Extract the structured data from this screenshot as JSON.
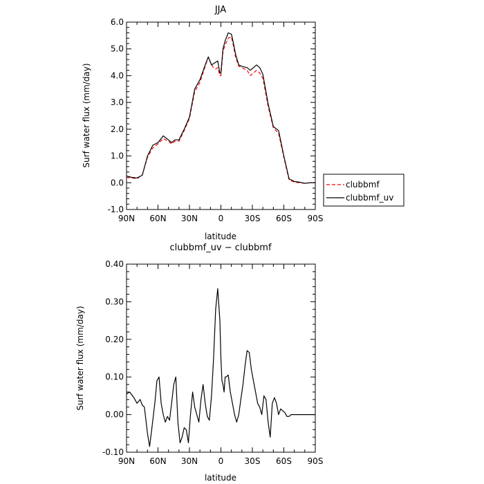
{
  "chart_data": [
    {
      "type": "line",
      "title": "JJA",
      "xlabel": "latitude",
      "ylabel": "Surf water flux (mm/day)",
      "xlim": [
        90,
        -90
      ],
      "ylim": [
        -1.0,
        6.0
      ],
      "xticks": [
        90,
        60,
        30,
        0,
        -30,
        -60,
        -90
      ],
      "xtick_labels": [
        "90N",
        "60N",
        "30N",
        "0",
        "30S",
        "60S",
        "90S"
      ],
      "yticks": [
        -1.0,
        0.0,
        1.0,
        2.0,
        3.0,
        4.0,
        5.0,
        6.0
      ],
      "ytick_labels": [
        "-1.0",
        "0.0",
        "1.0",
        "2.0",
        "3.0",
        "4.0",
        "5.0",
        "6.0"
      ],
      "grid": false,
      "legend": "right, outside plot",
      "series": [
        {
          "name": "clubbmf",
          "color": "#ff0000",
          "dash": "dashed",
          "x": [
            90,
            85,
            80,
            75,
            70,
            65,
            60,
            55,
            50,
            47,
            44,
            40,
            35,
            30,
            25,
            20,
            15,
            12,
            9,
            7,
            5,
            3,
            1,
            0,
            -2,
            -4,
            -7,
            -10,
            -12,
            -14,
            -17,
            -20,
            -25,
            -28,
            -31,
            -34,
            -37,
            -40,
            -45,
            -50,
            -55,
            -60,
            -65,
            -70,
            -75,
            -80,
            -85,
            -90
          ],
          "y": [
            0.2,
            0.18,
            0.15,
            0.3,
            0.95,
            1.3,
            1.45,
            1.65,
            1.55,
            1.45,
            1.55,
            1.55,
            1.95,
            2.4,
            3.4,
            3.75,
            4.35,
            4.7,
            4.4,
            4.3,
            4.25,
            4.3,
            4.0,
            4.0,
            4.9,
            5.15,
            5.4,
            5.45,
            5.1,
            4.7,
            4.35,
            4.3,
            4.2,
            4.0,
            4.1,
            4.2,
            4.1,
            3.9,
            2.85,
            2.05,
            1.85,
            0.95,
            0.1,
            0.02,
            0.0,
            -0.02,
            0.0,
            0.0
          ]
        },
        {
          "name": "clubbmf_uv",
          "color": "#000000",
          "dash": "solid",
          "x": [
            90,
            85,
            80,
            75,
            70,
            65,
            60,
            55,
            50,
            47,
            44,
            40,
            35,
            30,
            25,
            20,
            15,
            12,
            9,
            7,
            5,
            3,
            1,
            0,
            -2,
            -4,
            -7,
            -10,
            -12,
            -14,
            -17,
            -20,
            -25,
            -28,
            -31,
            -34,
            -37,
            -40,
            -45,
            -50,
            -55,
            -60,
            -65,
            -70,
            -75,
            -80,
            -85,
            -90
          ],
          "y": [
            0.25,
            0.2,
            0.18,
            0.28,
            1.0,
            1.4,
            1.5,
            1.75,
            1.6,
            1.5,
            1.6,
            1.6,
            2.0,
            2.45,
            3.5,
            3.85,
            4.4,
            4.7,
            4.4,
            4.45,
            4.5,
            4.55,
            4.1,
            4.1,
            5.0,
            5.3,
            5.6,
            5.55,
            5.2,
            4.8,
            4.4,
            4.35,
            4.3,
            4.2,
            4.3,
            4.4,
            4.3,
            4.05,
            2.95,
            2.1,
            1.95,
            1.0,
            0.15,
            0.05,
            0.02,
            -0.02,
            0.0,
            0.0
          ]
        }
      ]
    },
    {
      "type": "line",
      "title": "clubbmf_uv − clubbmf",
      "xlabel": "latitude",
      "ylabel": "Surf water flux (mm/day)",
      "xlim": [
        90,
        -90
      ],
      "ylim": [
        -0.1,
        0.4
      ],
      "xticks": [
        90,
        60,
        30,
        0,
        -30,
        -60,
        -90
      ],
      "xtick_labels": [
        "90N",
        "60N",
        "30N",
        "0",
        "30S",
        "60S",
        "90S"
      ],
      "yticks": [
        -0.1,
        0.0,
        0.1,
        0.2,
        0.3,
        0.4
      ],
      "ytick_labels": [
        "-0.10",
        "0.00",
        "0.10",
        "0.20",
        "0.30",
        "0.40"
      ],
      "grid": false,
      "series": [
        {
          "color": "#000000",
          "dash": "solid",
          "x": [
            90,
            87,
            83,
            80,
            77,
            75,
            73,
            70,
            68,
            66,
            63,
            61,
            59,
            57,
            55,
            53,
            51,
            49,
            47,
            45,
            43,
            41,
            39,
            37,
            35,
            33,
            31,
            29,
            27,
            25,
            23,
            21,
            19,
            17,
            15,
            13,
            11,
            9,
            7,
            5,
            3,
            1,
            0,
            -1,
            -2,
            -3,
            -4,
            -5,
            -7,
            -9,
            -11,
            -13,
            -15,
            -17,
            -19,
            -21,
            -23,
            -25,
            -27,
            -29,
            -31,
            -33,
            -35,
            -37,
            -39,
            -41,
            -43,
            -45,
            -47,
            -49,
            -51,
            -53,
            -55,
            -57,
            -59,
            -61,
            -63,
            -65,
            -67,
            -70,
            -73,
            -76,
            -79,
            -82,
            -85,
            -88,
            -90
          ],
          "y": [
            0.055,
            0.06,
            0.045,
            0.03,
            0.04,
            0.025,
            0.02,
            -0.05,
            -0.085,
            -0.04,
            0.03,
            0.09,
            0.1,
            0.03,
            0.0,
            -0.02,
            -0.005,
            -0.015,
            0.03,
            0.08,
            0.1,
            -0.02,
            -0.075,
            -0.06,
            -0.035,
            -0.04,
            -0.075,
            0.0,
            0.06,
            0.02,
            0.0,
            -0.02,
            0.04,
            0.08,
            0.03,
            -0.005,
            -0.015,
            0.05,
            0.15,
            0.28,
            0.335,
            0.25,
            0.15,
            0.09,
            0.08,
            0.06,
            0.1,
            0.1,
            0.105,
            0.06,
            0.03,
            0.0,
            -0.02,
            0.0,
            0.04,
            0.08,
            0.13,
            0.17,
            0.165,
            0.12,
            0.09,
            0.06,
            0.03,
            0.02,
            0.0,
            0.05,
            0.04,
            -0.02,
            -0.06,
            0.03,
            0.045,
            0.03,
            0.0,
            0.015,
            0.01,
            0.005,
            -0.005,
            -0.005,
            0.0,
            0.0,
            0.0,
            0.0,
            0.0,
            0.0,
            0.0,
            0.0,
            0.0
          ]
        }
      ]
    }
  ]
}
